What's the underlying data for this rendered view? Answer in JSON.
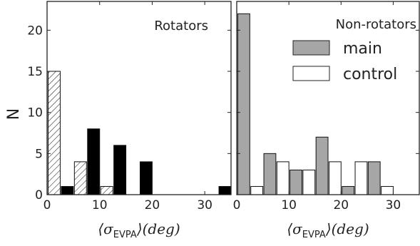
{
  "chart_data": [
    {
      "type": "bar",
      "title": "Rotators",
      "xlabel_main": "⟨σ",
      "xlabel_sub": "EVPA",
      "xlabel_tail": "⟩(deg)",
      "ylabel": "N",
      "xlim": [
        0,
        35
      ],
      "ylim": [
        0,
        23.5
      ],
      "xticks": [
        0,
        10,
        20,
        30
      ],
      "yticks": [
        0,
        5,
        10,
        15,
        20
      ],
      "bin_width": 5,
      "series": [
        {
          "style": "hatched",
          "color": "#ffffff",
          "bars": [
            {
              "x": 0.2,
              "value": 15
            },
            {
              "x": 5.2,
              "value": 4
            },
            {
              "x": 10.2,
              "value": 1
            }
          ]
        },
        {
          "style": "solid",
          "color": "#000000",
          "bars": [
            {
              "x": 2.7,
              "value": 1
            },
            {
              "x": 7.7,
              "value": 8
            },
            {
              "x": 12.7,
              "value": 6
            },
            {
              "x": 17.7,
              "value": 4
            },
            {
              "x": 32.7,
              "value": 1
            }
          ]
        }
      ]
    },
    {
      "type": "bar",
      "title": "Non-rotators",
      "xlabel_main": "⟨σ",
      "xlabel_sub": "EVPA",
      "xlabel_tail": "⟩(deg)",
      "xlim": [
        0,
        35
      ],
      "ylim": [
        0,
        23.5
      ],
      "xticks": [
        0,
        10,
        20,
        30
      ],
      "yticks": [
        0,
        5,
        10,
        15,
        20
      ],
      "bin_width": 5,
      "legend_position": "top-right",
      "series": [
        {
          "name": "main",
          "style": "solid",
          "color": "#a6a6a6",
          "bars": [
            {
              "x": 0.2,
              "value": 22
            },
            {
              "x": 5.2,
              "value": 5
            },
            {
              "x": 10.2,
              "value": 3
            },
            {
              "x": 15.2,
              "value": 7
            },
            {
              "x": 20.2,
              "value": 1
            },
            {
              "x": 25.2,
              "value": 4
            }
          ]
        },
        {
          "name": "control",
          "style": "solid",
          "color": "#ffffff",
          "bars": [
            {
              "x": 2.7,
              "value": 1
            },
            {
              "x": 7.7,
              "value": 4
            },
            {
              "x": 12.7,
              "value": 3
            },
            {
              "x": 17.7,
              "value": 4
            },
            {
              "x": 22.7,
              "value": 4
            },
            {
              "x": 27.7,
              "value": 1
            }
          ]
        }
      ]
    }
  ]
}
